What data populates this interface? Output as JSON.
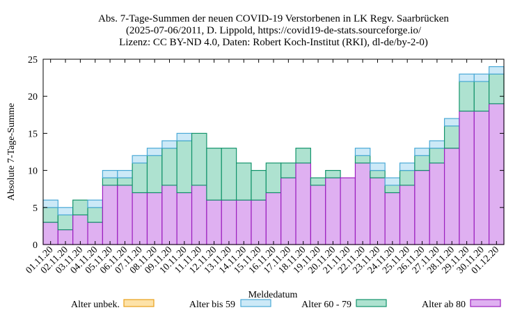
{
  "chart_data": {
    "type": "bar",
    "stacked": true,
    "title_lines": [
      "Abs. 7-Tage-Summen der neuen COVID-19 Verstorbenen in LK Regv. Saarbrücken",
      "(2025-07-06/2011, D. Lippold, https://covid19-de-stats.sourceforge.io/",
      "Lizenz: CC BY-ND 4.0, Daten: Robert Koch-Institut (RKI), dl-de/by-2-0)"
    ],
    "xlabel": "Meldedatum",
    "ylabel": "Absolute 7-Tage-Summe",
    "ylim": [
      0,
      25
    ],
    "yticks": [
      0,
      5,
      10,
      15,
      20,
      25
    ],
    "grid": false,
    "legend_position": "bottom",
    "categories": [
      "01.11.20",
      "02.11.20",
      "03.11.20",
      "04.11.20",
      "05.11.20",
      "06.11.20",
      "07.11.20",
      "08.11.20",
      "09.11.20",
      "10.11.20",
      "11.11.20",
      "12.11.20",
      "13.11.20",
      "14.11.20",
      "15.11.20",
      "16.11.20",
      "17.11.20",
      "18.11.20",
      "19.11.20",
      "20.11.20",
      "21.11.20",
      "22.11.20",
      "23.11.20",
      "24.11.20",
      "25.11.20",
      "26.11.20",
      "27.11.20",
      "28.11.20",
      "29.11.20",
      "30.11.20",
      "01.12.20"
    ],
    "series": [
      {
        "name": "Alter ab 80",
        "color": "#dfb0f1",
        "edge": "#9c1fbf",
        "values": [
          3,
          2,
          4,
          3,
          8,
          8,
          7,
          7,
          8,
          7,
          8,
          6,
          6,
          6,
          6,
          7,
          9,
          11,
          8,
          9,
          9,
          11,
          9,
          7,
          8,
          10,
          11,
          13,
          18,
          18,
          19
        ]
      },
      {
        "name": "Alter 60 - 79",
        "color": "#aee2d0",
        "edge": "#13936b",
        "values": [
          2,
          2,
          2,
          2,
          1,
          1,
          4,
          5,
          5,
          7,
          7,
          7,
          7,
          5,
          4,
          4,
          2,
          2,
          1,
          1,
          0,
          1,
          1,
          1,
          2,
          2,
          2,
          3,
          4,
          4,
          4
        ]
      },
      {
        "name": "Alter bis 59",
        "color": "#cce9f7",
        "edge": "#4aa9d6",
        "values": [
          1,
          1,
          0,
          1,
          1,
          1,
          1,
          1,
          1,
          1,
          0,
          0,
          0,
          0,
          0,
          0,
          0,
          0,
          0,
          0,
          0,
          1,
          1,
          1,
          1,
          1,
          1,
          1,
          1,
          1,
          1
        ]
      },
      {
        "name": "Alter unbek.",
        "color": "#fde2a8",
        "edge": "#e8a11a",
        "values": [
          0,
          0,
          0,
          0,
          0,
          0,
          0,
          0,
          0,
          0,
          0,
          0,
          0,
          0,
          0,
          0,
          0,
          0,
          0,
          0,
          0,
          0,
          0,
          0,
          0,
          0,
          0,
          0,
          0,
          0,
          0
        ]
      }
    ],
    "legend_order": [
      "Alter unbek.",
      "Alter bis 59",
      "Alter 60 - 79",
      "Alter ab 80"
    ]
  }
}
